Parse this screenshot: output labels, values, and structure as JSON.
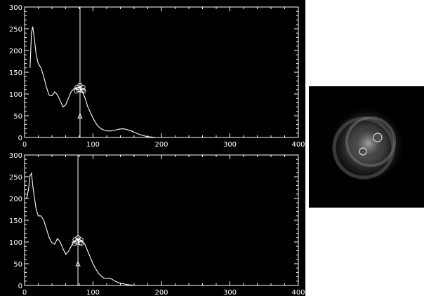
{
  "chart_data": [
    {
      "type": "line",
      "title": "",
      "xlabel": "",
      "ylabel": "",
      "xlim": [
        0,
        400
      ],
      "ylim": [
        0,
        300
      ],
      "x_ticks": [
        "0",
        "100",
        "200",
        "300",
        "400"
      ],
      "y_ticks": [
        "0",
        "50",
        "100",
        "150",
        "200",
        "250",
        "300"
      ],
      "background": "#000000",
      "foreground": "#ffffff",
      "grid": false,
      "vertical_marker_x": 81,
      "peak_point": [
        81,
        115
      ],
      "marker_point": [
        81,
        50
      ],
      "series": [
        {
          "x": [
            8,
            10,
            12,
            14,
            17,
            20,
            24,
            28,
            32,
            36,
            40,
            44,
            48,
            52,
            56,
            60,
            64,
            68,
            72,
            76,
            80,
            83,
            86,
            89,
            92,
            96,
            100,
            104,
            108,
            112,
            116,
            120,
            126,
            132,
            138,
            144,
            150,
            156,
            162,
            168,
            174,
            180,
            186,
            192,
            200
          ],
          "values": [
            160,
            240,
            255,
            230,
            190,
            170,
            160,
            140,
            115,
            97,
            96,
            105,
            98,
            85,
            70,
            75,
            90,
            105,
            112,
            115,
            115,
            110,
            100,
            88,
            72,
            58,
            45,
            33,
            25,
            20,
            17,
            15,
            15,
            17,
            19,
            20,
            18,
            15,
            11,
            7,
            4,
            2,
            1,
            0,
            0
          ]
        }
      ]
    },
    {
      "type": "line",
      "title": "",
      "xlabel": "",
      "ylabel": "",
      "xlim": [
        0,
        400
      ],
      "ylim": [
        0,
        300
      ],
      "x_ticks": [
        "0",
        "100",
        "200",
        "300",
        "400"
      ],
      "y_ticks": [
        "0",
        "50",
        "100",
        "150",
        "200",
        "250",
        "300"
      ],
      "background": "#000000",
      "foreground": "#ffffff",
      "grid": false,
      "vertical_marker_x": 78,
      "peak_point": [
        78,
        105
      ],
      "marker_point": [
        78,
        50
      ],
      "series": [
        {
          "x": [
            2,
            4,
            6,
            8,
            10,
            12,
            14,
            17,
            20,
            24,
            28,
            32,
            36,
            40,
            44,
            48,
            52,
            56,
            60,
            64,
            68,
            72,
            76,
            80,
            84,
            88,
            92,
            96,
            100,
            104,
            108,
            112,
            116,
            120,
            124,
            128,
            132,
            138,
            144,
            150,
            156,
            162,
            168,
            176,
            185
          ],
          "values": [
            200,
            205,
            225,
            252,
            258,
            230,
            205,
            175,
            160,
            160,
            150,
            130,
            110,
            98,
            95,
            108,
            100,
            85,
            72,
            78,
            90,
            100,
            106,
            106,
            103,
            95,
            80,
            65,
            50,
            38,
            28,
            22,
            17,
            16,
            17,
            14,
            10,
            6,
            4,
            2,
            1,
            0,
            0,
            0,
            0
          ]
        }
      ]
    }
  ],
  "image_panel": {
    "background": "#000000",
    "description_colors": [
      "#3a3a3a",
      "#6e6e6e",
      "#bdbdbd"
    ]
  }
}
